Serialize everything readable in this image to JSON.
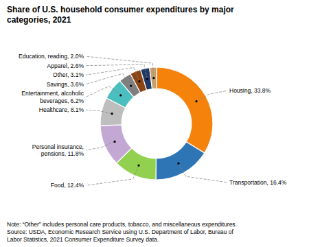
{
  "chart_data": {
    "type": "donut",
    "title": "Share of U.S. household consumer expenditures by major\ncategories, 2021",
    "note": "Note: “Other” includes personal care products, tobacco, and miscellaneous expenditures.\nSource: USDA, Economic Research Service using U.S. Department of Labor, Bureau of\nLabor Statistics, 2021 Consumer Expenditure Survey data.",
    "values": [
      33.8,
      16.4,
      12.4,
      11.8,
      8.1,
      6.2,
      3.6,
      3.1,
      2.6,
      2.0
    ],
    "value_labels": [
      "Housing, 33.8%",
      "Transportation, 16.4%",
      "Food, 12.4%",
      "Personal insurance,\npensions, 11.8%",
      "Healthcare, 8.1%",
      "Entertainment, alcoholic\nbeverages, 6.2%",
      "Savings, 3.6%",
      "Other, 3.1%",
      "Apparel, 2.6%",
      "Education, reading, 2.0%"
    ],
    "colors": [
      "#F5820A",
      "#2E75B6",
      "#92D050",
      "#C4A8D4",
      "#BEBEBE",
      "#4BBFBF",
      "#7F7F7F",
      "#8B4513",
      "#1F3864",
      "#C8A06E"
    ],
    "data_labels": true
  }
}
